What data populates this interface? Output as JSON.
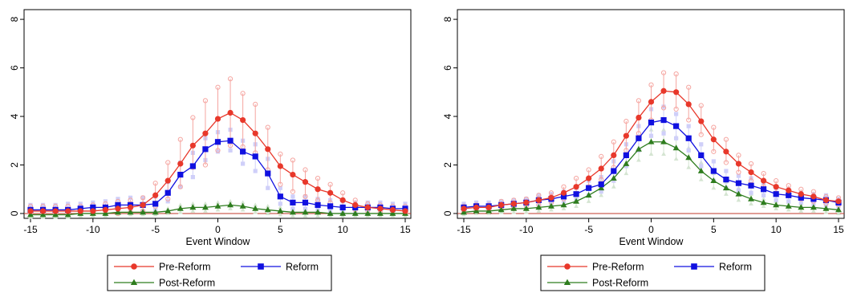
{
  "chart_data": [
    {
      "type": "line",
      "xlabel": "Event Window",
      "ylabel": "",
      "xlim": [
        -15,
        15
      ],
      "ylim": [
        -0.2,
        8.4
      ],
      "xticks": [
        -15,
        -10,
        -5,
        0,
        5,
        10,
        15
      ],
      "xtick_labels": [
        "-15",
        "-10",
        "-5",
        "0",
        "5",
        "10",
        "15"
      ],
      "yticks": [
        0,
        2,
        4,
        6,
        8
      ],
      "ytick_labels": [
        "0",
        "2",
        "4",
        "6",
        "8"
      ],
      "legend_placement": "bottom",
      "x": [
        -15,
        -14,
        -13,
        -12,
        -11,
        -10,
        -9,
        -8,
        -7,
        -6,
        -5,
        -4,
        -3,
        -2,
        -1,
        0,
        1,
        2,
        3,
        4,
        5,
        6,
        7,
        8,
        9,
        10,
        11,
        12,
        13,
        14,
        15
      ],
      "series": [
        {
          "name": "Pre-Reform",
          "color": "#e8382b",
          "marker": "circle",
          "values": [
            0.1,
            0.1,
            0.1,
            0.1,
            0.1,
            0.1,
            0.15,
            0.2,
            0.25,
            0.35,
            0.75,
            1.35,
            2.05,
            2.8,
            3.3,
            3.9,
            4.15,
            3.85,
            3.3,
            2.65,
            1.95,
            1.6,
            1.3,
            1.0,
            0.85,
            0.55,
            0.35,
            0.25,
            0.2,
            0.15,
            0.1
          ],
          "ci_lower": [
            0.0,
            0.0,
            0.0,
            0.0,
            0.0,
            0.0,
            0.0,
            0.0,
            0.05,
            0.1,
            0.3,
            0.6,
            1.1,
            1.9,
            2.0,
            2.6,
            2.8,
            2.75,
            2.5,
            1.8,
            1.2,
            0.9,
            0.7,
            0.55,
            0.45,
            0.25,
            0.15,
            0.1,
            0.05,
            0.0,
            0.0
          ],
          "ci_upper": [
            0.3,
            0.3,
            0.3,
            0.3,
            0.3,
            0.35,
            0.4,
            0.5,
            0.55,
            0.65,
            1.25,
            2.1,
            3.05,
            3.95,
            4.65,
            5.2,
            5.55,
            4.95,
            4.5,
            3.55,
            2.45,
            2.2,
            1.8,
            1.45,
            1.2,
            0.85,
            0.55,
            0.4,
            0.35,
            0.3,
            0.3
          ]
        },
        {
          "name": "Reform",
          "color": "#1010e0",
          "marker": "square",
          "values": [
            0.15,
            0.15,
            0.15,
            0.15,
            0.2,
            0.25,
            0.25,
            0.35,
            0.35,
            0.35,
            0.4,
            0.85,
            1.6,
            1.95,
            2.65,
            2.95,
            3.0,
            2.55,
            2.35,
            1.65,
            0.7,
            0.45,
            0.45,
            0.35,
            0.3,
            0.25,
            0.25,
            0.25,
            0.25,
            0.2,
            0.2
          ],
          "ci_lower": [
            0.0,
            0.0,
            0.0,
            0.0,
            0.05,
            0.05,
            0.05,
            0.1,
            0.1,
            0.1,
            0.15,
            0.5,
            1.1,
            1.5,
            2.2,
            2.55,
            2.6,
            2.05,
            1.75,
            1.05,
            0.4,
            0.2,
            0.2,
            0.15,
            0.1,
            0.1,
            0.1,
            0.1,
            0.1,
            0.05,
            0.05
          ],
          "ci_upper": [
            0.35,
            0.35,
            0.35,
            0.4,
            0.4,
            0.45,
            0.5,
            0.6,
            0.65,
            0.65,
            0.7,
            1.3,
            2.1,
            2.5,
            3.1,
            3.35,
            3.45,
            3.0,
            2.85,
            2.25,
            1.05,
            0.7,
            0.7,
            0.6,
            0.55,
            0.5,
            0.45,
            0.45,
            0.45,
            0.4,
            0.4
          ]
        },
        {
          "name": "Post-Reform",
          "color": "#2e7d1e",
          "marker": "triangle",
          "values": [
            -0.05,
            -0.05,
            -0.05,
            -0.05,
            0.0,
            0.0,
            0.0,
            0.05,
            0.05,
            0.05,
            0.05,
            0.1,
            0.2,
            0.25,
            0.25,
            0.3,
            0.35,
            0.3,
            0.2,
            0.15,
            0.1,
            0.05,
            0.05,
            0.05,
            0.0,
            0.0,
            0.0,
            0.0,
            0.0,
            0.0,
            0.0
          ],
          "ci_lower": [
            -0.15,
            -0.15,
            -0.15,
            -0.15,
            -0.1,
            -0.1,
            -0.1,
            -0.05,
            -0.05,
            -0.05,
            -0.05,
            0.0,
            0.05,
            0.1,
            0.1,
            0.15,
            0.2,
            0.15,
            0.05,
            0.0,
            -0.05,
            -0.1,
            -0.1,
            -0.1,
            -0.1,
            -0.1,
            -0.1,
            -0.1,
            -0.1,
            -0.1,
            -0.1
          ],
          "ci_upper": [
            0.05,
            0.05,
            0.05,
            0.05,
            0.1,
            0.1,
            0.1,
            0.15,
            0.15,
            0.15,
            0.15,
            0.2,
            0.35,
            0.4,
            0.4,
            0.45,
            0.5,
            0.45,
            0.35,
            0.3,
            0.25,
            0.2,
            0.15,
            0.15,
            0.1,
            0.1,
            0.1,
            0.1,
            0.1,
            0.1,
            0.1
          ]
        }
      ]
    },
    {
      "type": "line",
      "xlabel": "Event Window",
      "ylabel": "",
      "xlim": [
        -15,
        15
      ],
      "ylim": [
        -0.2,
        8.4
      ],
      "xticks": [
        -15,
        -10,
        -5,
        0,
        5,
        10,
        15
      ],
      "xtick_labels": [
        "-15",
        "-10",
        "-5",
        "0",
        "5",
        "10",
        "15"
      ],
      "yticks": [
        0,
        2,
        4,
        6,
        8
      ],
      "ytick_labels": [
        "0",
        "2",
        "4",
        "6",
        "8"
      ],
      "legend_placement": "bottom",
      "x": [
        -15,
        -14,
        -13,
        -12,
        -11,
        -10,
        -9,
        -8,
        -7,
        -6,
        -5,
        -4,
        -3,
        -2,
        -1,
        0,
        1,
        2,
        3,
        4,
        5,
        6,
        7,
        8,
        9,
        10,
        11,
        12,
        13,
        14,
        15
      ],
      "series": [
        {
          "name": "Pre-Reform",
          "color": "#e8382b",
          "marker": "circle",
          "values": [
            0.2,
            0.25,
            0.25,
            0.35,
            0.4,
            0.45,
            0.55,
            0.65,
            0.85,
            1.1,
            1.45,
            1.85,
            2.4,
            3.2,
            3.95,
            4.6,
            5.05,
            5.0,
            4.5,
            3.8,
            3.05,
            2.55,
            2.05,
            1.7,
            1.35,
            1.1,
            0.95,
            0.8,
            0.7,
            0.55,
            0.5
          ],
          "ci_lower": [
            0.1,
            0.15,
            0.15,
            0.2,
            0.25,
            0.3,
            0.35,
            0.45,
            0.6,
            0.8,
            1.1,
            1.4,
            1.9,
            2.6,
            3.3,
            3.85,
            4.35,
            4.3,
            3.85,
            3.25,
            2.55,
            2.1,
            1.7,
            1.35,
            1.1,
            0.85,
            0.75,
            0.6,
            0.5,
            0.4,
            0.35
          ],
          "ci_upper": [
            0.3,
            0.35,
            0.35,
            0.5,
            0.55,
            0.6,
            0.75,
            0.85,
            1.1,
            1.45,
            1.8,
            2.35,
            2.95,
            3.8,
            4.65,
            5.3,
            5.8,
            5.75,
            5.2,
            4.45,
            3.55,
            3.05,
            2.4,
            2.05,
            1.65,
            1.35,
            1.15,
            1.0,
            0.9,
            0.7,
            0.65
          ]
        },
        {
          "name": "Reform",
          "color": "#1010e0",
          "marker": "square",
          "values": [
            0.25,
            0.3,
            0.3,
            0.35,
            0.4,
            0.45,
            0.55,
            0.6,
            0.7,
            0.8,
            1.05,
            1.2,
            1.75,
            2.4,
            3.1,
            3.75,
            3.85,
            3.6,
            3.1,
            2.4,
            1.75,
            1.4,
            1.25,
            1.15,
            1.0,
            0.8,
            0.75,
            0.65,
            0.6,
            0.55,
            0.45
          ],
          "ci_lower": [
            0.1,
            0.15,
            0.15,
            0.2,
            0.25,
            0.3,
            0.35,
            0.4,
            0.5,
            0.55,
            0.75,
            0.9,
            1.35,
            1.95,
            2.6,
            3.2,
            3.3,
            3.1,
            2.6,
            1.95,
            1.35,
            1.05,
            0.95,
            0.85,
            0.75,
            0.55,
            0.5,
            0.45,
            0.4,
            0.35,
            0.3
          ],
          "ci_upper": [
            0.4,
            0.45,
            0.45,
            0.5,
            0.55,
            0.6,
            0.75,
            0.8,
            0.9,
            1.05,
            1.35,
            1.5,
            2.15,
            2.85,
            3.6,
            4.3,
            4.4,
            4.1,
            3.6,
            2.85,
            2.15,
            1.75,
            1.55,
            1.45,
            1.25,
            1.05,
            1.0,
            0.85,
            0.8,
            0.75,
            0.6
          ]
        },
        {
          "name": "Post-Reform",
          "color": "#2e7d1e",
          "marker": "triangle",
          "values": [
            0.05,
            0.1,
            0.1,
            0.15,
            0.2,
            0.2,
            0.25,
            0.3,
            0.35,
            0.5,
            0.75,
            1.05,
            1.45,
            2.05,
            2.65,
            2.95,
            2.95,
            2.7,
            2.3,
            1.75,
            1.35,
            1.05,
            0.8,
            0.6,
            0.45,
            0.35,
            0.3,
            0.25,
            0.25,
            0.2,
            0.15
          ],
          "ci_lower": [
            -0.05,
            0.0,
            0.0,
            0.05,
            0.05,
            0.05,
            0.1,
            0.15,
            0.2,
            0.3,
            0.5,
            0.75,
            1.1,
            1.65,
            2.2,
            2.45,
            2.45,
            2.25,
            1.9,
            1.4,
            1.05,
            0.8,
            0.55,
            0.4,
            0.3,
            0.2,
            0.15,
            0.1,
            0.1,
            0.05,
            0.0
          ],
          "ci_upper": [
            0.15,
            0.2,
            0.2,
            0.25,
            0.35,
            0.35,
            0.4,
            0.45,
            0.5,
            0.7,
            1.0,
            1.35,
            1.8,
            2.45,
            3.1,
            3.45,
            3.45,
            3.15,
            2.7,
            2.1,
            1.65,
            1.3,
            1.05,
            0.8,
            0.6,
            0.5,
            0.45,
            0.4,
            0.4,
            0.35,
            0.3
          ]
        }
      ]
    }
  ]
}
